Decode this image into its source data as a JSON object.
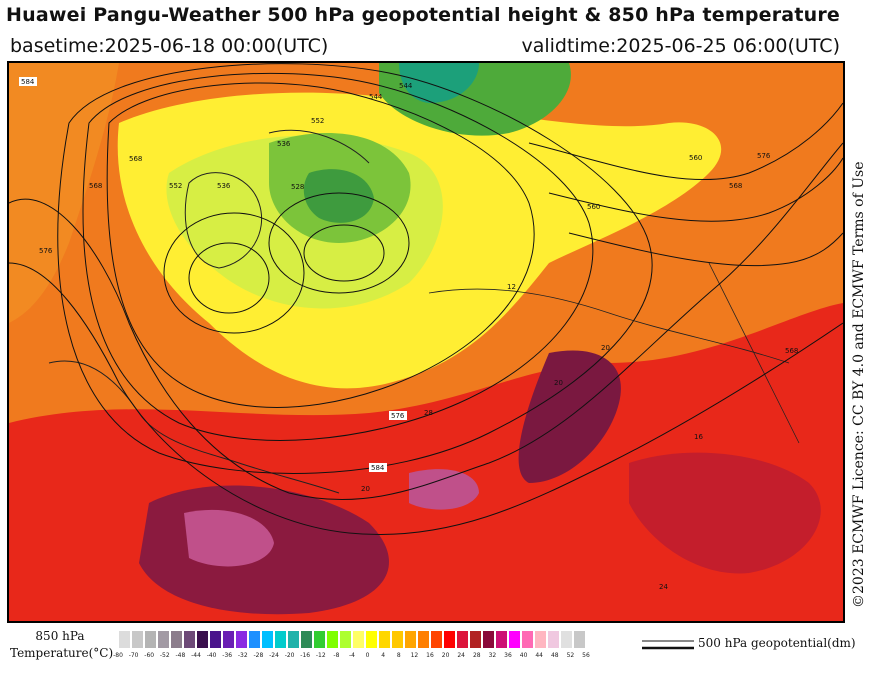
{
  "header": {
    "title": "Huawei Pangu-Weather 500 hPa geopotential height & 850 hPa temperature",
    "basetime": "basetime:2025-06-18 00:00(UTC)",
    "validtime": "validtime:2025-06-25 06:00(UTC)"
  },
  "map": {
    "region": "Eurasia / North Atlantic / Arctic",
    "height_contour_labels": [
      "584",
      "560",
      "560",
      "544",
      "552",
      "536",
      "544",
      "536",
      "528",
      "568",
      "568",
      "576",
      "584",
      "576",
      "552",
      "568",
      "568",
      "576"
    ],
    "temperature_labels": [
      "20",
      "20",
      "28",
      "16",
      "24",
      "12",
      "20"
    ]
  },
  "licence": {
    "text": "©2023 ECMWF Licence: CC BY 4.0 and ECMWF Terms of Use"
  },
  "legend": {
    "title_line1": "850 hPa",
    "title_line2": "Temperature(°C)",
    "geo_label": "500 hPa geopotential(dm)",
    "colors": [
      "#dcdcdc",
      "#c8c8c8",
      "#b4b4b4",
      "#a29aa4",
      "#8c7d8c",
      "#6e4a78",
      "#3a0f4d",
      "#4a148c",
      "#6a1fb4",
      "#8a2be2",
      "#1e90ff",
      "#00bfff",
      "#00cccc",
      "#20b2aa",
      "#2e8b57",
      "#32cd32",
      "#7fff00",
      "#adff2f",
      "#ffff66",
      "#ffff00",
      "#ffd700",
      "#ffc800",
      "#ffa500",
      "#ff7f00",
      "#ff4500",
      "#ff0000",
      "#dc143c",
      "#b22222",
      "#8b0a3a",
      "#cd1076",
      "#ff00ff",
      "#ff69b4",
      "#ffb6c1",
      "#f0c8e0",
      "#e0e0e0",
      "#c8c8c8"
    ],
    "ticks": [
      "-80",
      "-70",
      "-60",
      "-52",
      "-48",
      "-44",
      "-40",
      "-36",
      "-32",
      "-28",
      "-24",
      "-20",
      "-16",
      "-12",
      "-8",
      "-4",
      "0",
      "4",
      "8",
      "12",
      "16",
      "20",
      "24",
      "28",
      "32",
      "36",
      "40",
      "44",
      "48",
      "52",
      "56"
    ]
  }
}
